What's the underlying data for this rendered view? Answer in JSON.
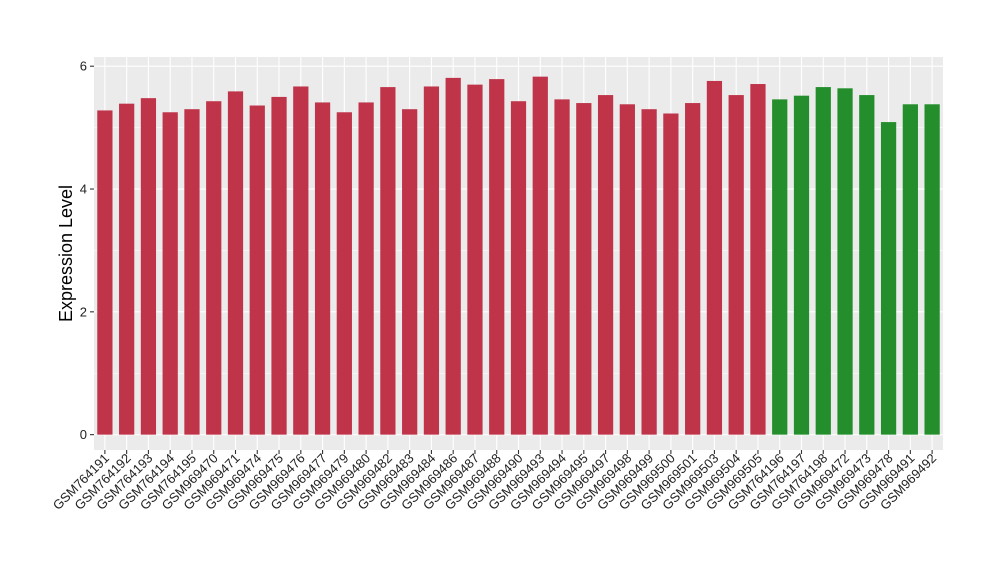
{
  "chart_data": {
    "type": "bar",
    "title": "",
    "xlabel": "",
    "ylabel": "Expression Level",
    "ylim": [
      -0.25,
      6.15
    ],
    "yticks": [
      0,
      2,
      4,
      6
    ],
    "grid": true,
    "legend": "none",
    "colors": {
      "group1": "#c0344a",
      "group2": "#238e2b",
      "panel": "#ebebeb",
      "gridline": "#ffffff"
    },
    "categories": [
      "GSM764191",
      "GSM764192",
      "GSM764193",
      "GSM764194",
      "GSM764195",
      "GSM969470",
      "GSM969471",
      "GSM969474",
      "GSM969475",
      "GSM969476",
      "GSM969477",
      "GSM969479",
      "GSM969480",
      "GSM969482",
      "GSM969483",
      "GSM969484",
      "GSM969486",
      "GSM969487",
      "GSM969488",
      "GSM969490",
      "GSM969493",
      "GSM969494",
      "GSM969495",
      "GSM969497",
      "GSM969498",
      "GSM969499",
      "GSM969500",
      "GSM969501",
      "GSM969503",
      "GSM969504",
      "GSM969505",
      "GSM764196",
      "GSM764197",
      "GSM764198",
      "GSM969472",
      "GSM969473",
      "GSM969478",
      "GSM969491",
      "GSM969492"
    ],
    "values": [
      5.28,
      5.39,
      5.48,
      5.25,
      5.3,
      5.43,
      5.59,
      5.36,
      5.5,
      5.67,
      5.41,
      5.25,
      5.41,
      5.66,
      5.3,
      5.67,
      5.81,
      5.7,
      5.79,
      5.43,
      5.83,
      5.46,
      5.4,
      5.53,
      5.38,
      5.3,
      5.23,
      5.4,
      5.76,
      5.53,
      5.71,
      5.46,
      5.52,
      5.66,
      5.64,
      5.53,
      5.09,
      5.38,
      5.38
    ],
    "groups": [
      1,
      1,
      1,
      1,
      1,
      1,
      1,
      1,
      1,
      1,
      1,
      1,
      1,
      1,
      1,
      1,
      1,
      1,
      1,
      1,
      1,
      1,
      1,
      1,
      1,
      1,
      1,
      1,
      1,
      1,
      1,
      2,
      2,
      2,
      2,
      2,
      2,
      2,
      2
    ]
  }
}
